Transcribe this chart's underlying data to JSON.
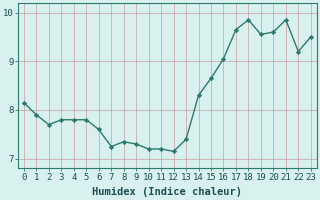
{
  "x": [
    0,
    1,
    2,
    3,
    4,
    5,
    6,
    7,
    8,
    9,
    10,
    11,
    12,
    13,
    14,
    15,
    16,
    17,
    18,
    19,
    20,
    21,
    22,
    23
  ],
  "y": [
    8.15,
    7.9,
    7.7,
    7.8,
    7.8,
    7.8,
    7.6,
    7.25,
    7.35,
    7.3,
    7.2,
    7.2,
    7.15,
    7.4,
    8.3,
    8.65,
    9.05,
    9.65,
    9.85,
    9.55,
    9.6,
    9.85,
    9.2,
    9.5
  ],
  "line_color": "#2d7a6e",
  "marker": "D",
  "marker_size": 2.2,
  "linewidth": 1.0,
  "background_color": "#d8f0ee",
  "grid_color": "#b8d8d4",
  "xlabel": "Humidex (Indice chaleur)",
  "xlabel_fontsize": 7.5,
  "xlim": [
    -0.5,
    23.5
  ],
  "ylim": [
    6.8,
    10.2
  ],
  "yticks": [
    7,
    8,
    9,
    10
  ],
  "xticks": [
    0,
    1,
    2,
    3,
    4,
    5,
    6,
    7,
    8,
    9,
    10,
    11,
    12,
    13,
    14,
    15,
    16,
    17,
    18,
    19,
    20,
    21,
    22,
    23
  ],
  "tick_fontsize": 6.5
}
